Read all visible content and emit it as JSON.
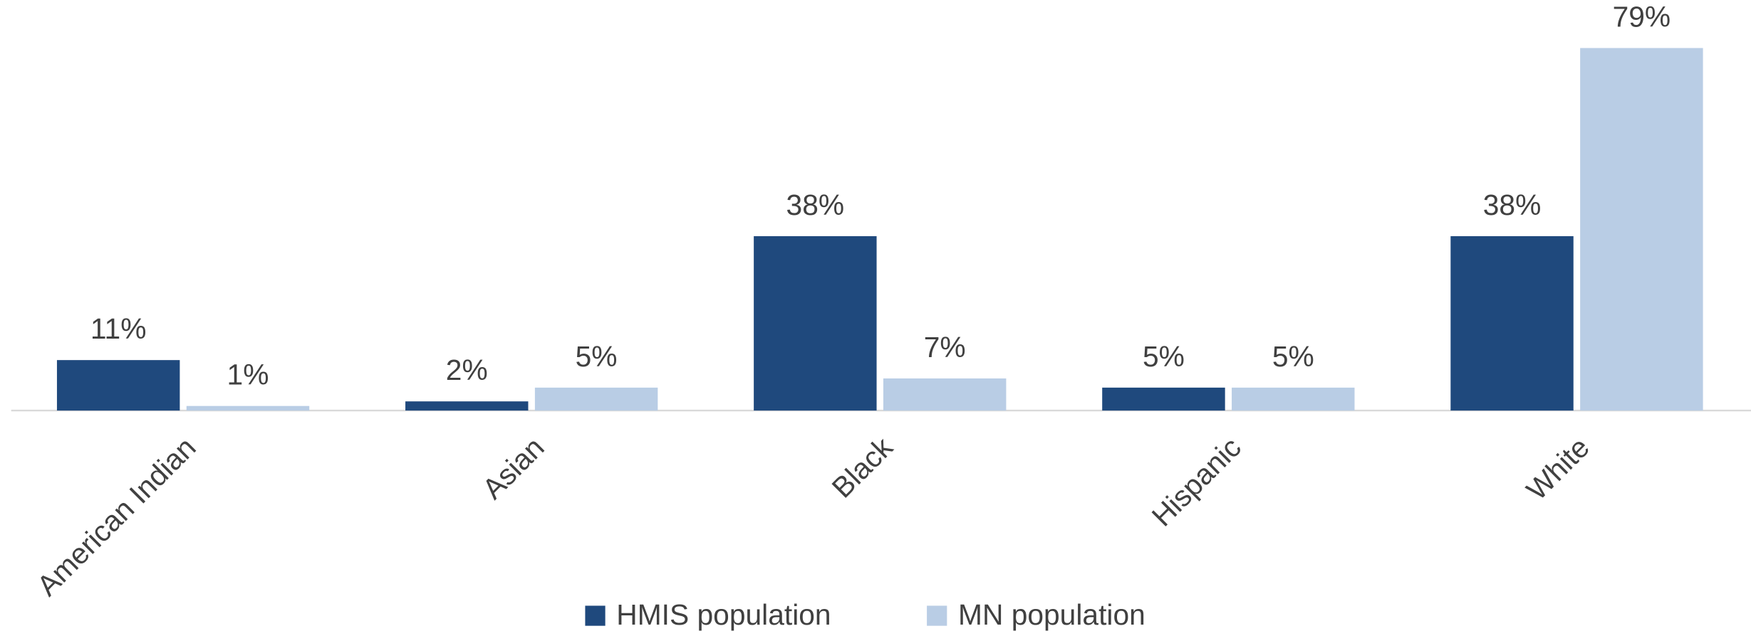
{
  "chart_data": {
    "type": "bar",
    "categories": [
      "American Indian",
      "Asian",
      "Black",
      "Hispanic",
      "White"
    ],
    "series": [
      {
        "name": "HMIS population",
        "color": "#1f497d",
        "values": [
          11,
          2,
          38,
          5,
          38
        ],
        "value_labels": [
          "11%",
          "2%",
          "38%",
          "5%",
          "38%"
        ]
      },
      {
        "name": "MN population",
        "color": "#b9cde5",
        "values": [
          1,
          5,
          7,
          5,
          79
        ],
        "value_labels": [
          "1%",
          "5%",
          "7%",
          "5%",
          "79%"
        ]
      }
    ],
    "legend": "bottom"
  }
}
